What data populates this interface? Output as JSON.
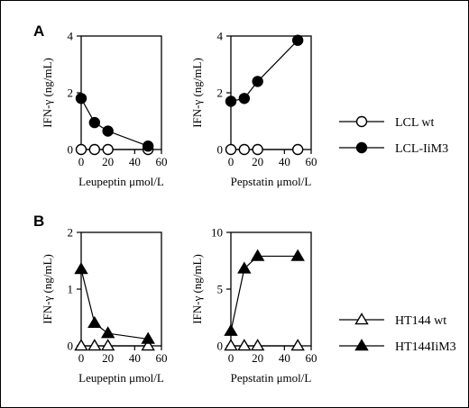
{
  "panel_labels": [
    "A",
    "B"
  ],
  "chart_data": [
    {
      "type": "line",
      "panel": "A",
      "xlabel": "Leupeptin μmol/L",
      "ylabel": "IFN-γ (ng/mL)",
      "xlim": [
        0,
        60
      ],
      "ylim": [
        0,
        4
      ],
      "xticks": [
        0,
        20,
        40,
        60
      ],
      "yticks": [
        0,
        2,
        4
      ],
      "grid": false,
      "series": [
        {
          "name": "LCL wt",
          "marker": "circle-open",
          "x": [
            0,
            10,
            20,
            50
          ],
          "y": [
            0.0,
            0.0,
            0.0,
            0.0
          ]
        },
        {
          "name": "LCL-IiM3",
          "marker": "circle-filled",
          "x": [
            0,
            10,
            20,
            50
          ],
          "y": [
            1.8,
            0.95,
            0.65,
            0.12
          ]
        }
      ]
    },
    {
      "type": "line",
      "panel": "A",
      "xlabel": "Pepstatin μmol/L",
      "ylabel": "IFN-γ (ng/mL)",
      "xlim": [
        0,
        60
      ],
      "ylim": [
        0,
        4
      ],
      "xticks": [
        0,
        20,
        40,
        60
      ],
      "yticks": [
        0,
        2,
        4
      ],
      "grid": false,
      "series": [
        {
          "name": "LCL wt",
          "marker": "circle-open",
          "x": [
            0,
            10,
            20,
            50
          ],
          "y": [
            0.0,
            0.0,
            0.0,
            0.0
          ]
        },
        {
          "name": "LCL-IiM3",
          "marker": "circle-filled",
          "x": [
            0,
            10,
            20,
            50
          ],
          "y": [
            1.7,
            1.8,
            2.4,
            3.85
          ]
        }
      ]
    },
    {
      "type": "line",
      "panel": "B",
      "xlabel": "Leupeptin μmol/L",
      "ylabel": "IFN-γ (ng/mL)",
      "xlim": [
        0,
        60
      ],
      "ylim": [
        0,
        2
      ],
      "xticks": [
        0,
        20,
        40,
        60
      ],
      "yticks": [
        0,
        1,
        2
      ],
      "grid": false,
      "series": [
        {
          "name": "HT144 wt",
          "marker": "triangle-open",
          "x": [
            0,
            10,
            20,
            50
          ],
          "y": [
            0.0,
            0.0,
            0.0,
            0.0
          ]
        },
        {
          "name": "HT144IiM3",
          "marker": "triangle-filled",
          "x": [
            0,
            10,
            20,
            50
          ],
          "y": [
            1.35,
            0.4,
            0.22,
            0.12
          ]
        }
      ]
    },
    {
      "type": "line",
      "panel": "B",
      "xlabel": "Pepstatin μmol/L",
      "ylabel": "IFN-γ (ng/mL)",
      "xlim": [
        0,
        60
      ],
      "ylim": [
        0,
        10
      ],
      "xticks": [
        0,
        20,
        40,
        60
      ],
      "yticks": [
        0,
        5,
        10
      ],
      "grid": false,
      "series": [
        {
          "name": "HT144 wt",
          "marker": "triangle-open",
          "x": [
            0,
            10,
            20,
            50
          ],
          "y": [
            0.0,
            0.0,
            0.0,
            0.0
          ]
        },
        {
          "name": "HT144IiM3",
          "marker": "triangle-filled",
          "x": [
            0,
            10,
            20,
            50
          ],
          "y": [
            1.3,
            6.8,
            7.9,
            7.9
          ]
        }
      ]
    }
  ],
  "legends": [
    {
      "panel": "A",
      "placement": "right",
      "entries": [
        {
          "label": "LCL wt",
          "marker": "circle-open"
        },
        {
          "label": "LCL-IiM3",
          "marker": "circle-filled"
        }
      ]
    },
    {
      "panel": "B",
      "placement": "right",
      "entries": [
        {
          "label": "HT144 wt",
          "marker": "triangle-open"
        },
        {
          "label": "HT144IiM3",
          "marker": "triangle-filled"
        }
      ]
    }
  ]
}
